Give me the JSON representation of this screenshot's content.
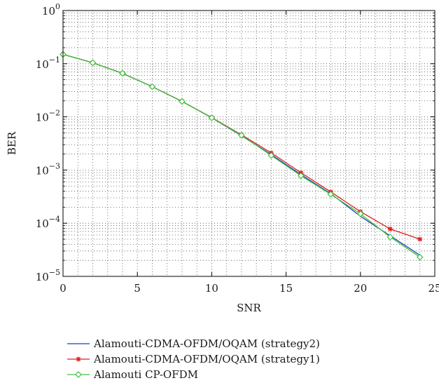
{
  "chart_data": {
    "type": "line",
    "xlabel": "SNR",
    "ylabel": "BER",
    "xlim": [
      0,
      25
    ],
    "ylim": [
      1e-05,
      1
    ],
    "yscale": "log",
    "grid": true,
    "legend_position": "below",
    "x_ticks": [
      0,
      5,
      10,
      15,
      20,
      25
    ],
    "x_tick_labels": [
      "0",
      "5",
      "10",
      "15",
      "20",
      "25"
    ],
    "y_ticks": [
      1e-05,
      0.0001,
      0.001,
      0.01,
      0.1,
      1
    ],
    "y_tick_labels": [
      {
        "base": "10",
        "exp": "−5"
      },
      {
        "base": "10",
        "exp": "−4"
      },
      {
        "base": "10",
        "exp": "−3"
      },
      {
        "base": "10",
        "exp": "−2"
      },
      {
        "base": "10",
        "exp": "−1"
      },
      {
        "base": "10",
        "exp": "0"
      }
    ],
    "series": [
      {
        "name": "Alamouti-CDMA-OFDM/OQAM (strategy2)",
        "color": "#1f3fbf",
        "marker": "none",
        "x": [
          0,
          2,
          4,
          6,
          8,
          10,
          12,
          14,
          16,
          18,
          20,
          22,
          24
        ],
        "y": [
          0.15,
          0.104,
          0.066,
          0.037,
          0.0195,
          0.0096,
          0.0044,
          0.00195,
          0.00082,
          0.00036,
          0.000135,
          5.8e-05,
          2.5e-05
        ]
      },
      {
        "name": "Alamouti-CDMA-OFDM/OQAM (strategy1)",
        "color": "#d92020",
        "marker": "star",
        "x": [
          0,
          2,
          4,
          6,
          8,
          10,
          12,
          14,
          16,
          18,
          20,
          22,
          24
        ],
        "y": [
          0.15,
          0.104,
          0.066,
          0.037,
          0.0196,
          0.0097,
          0.0046,
          0.0021,
          0.00089,
          0.00039,
          0.000165,
          7.8e-05,
          5e-05
        ]
      },
      {
        "name": "Alamouti CP-OFDM",
        "color": "#3cc43c",
        "marker": "diamond",
        "x": [
          0,
          2,
          4,
          6,
          8,
          10,
          12,
          14,
          16,
          18,
          20,
          22,
          24
        ],
        "y": [
          0.15,
          0.104,
          0.066,
          0.037,
          0.0195,
          0.0096,
          0.0045,
          0.00188,
          0.00078,
          0.00035,
          0.00015,
          5.5e-05,
          2.3e-05
        ]
      }
    ]
  }
}
